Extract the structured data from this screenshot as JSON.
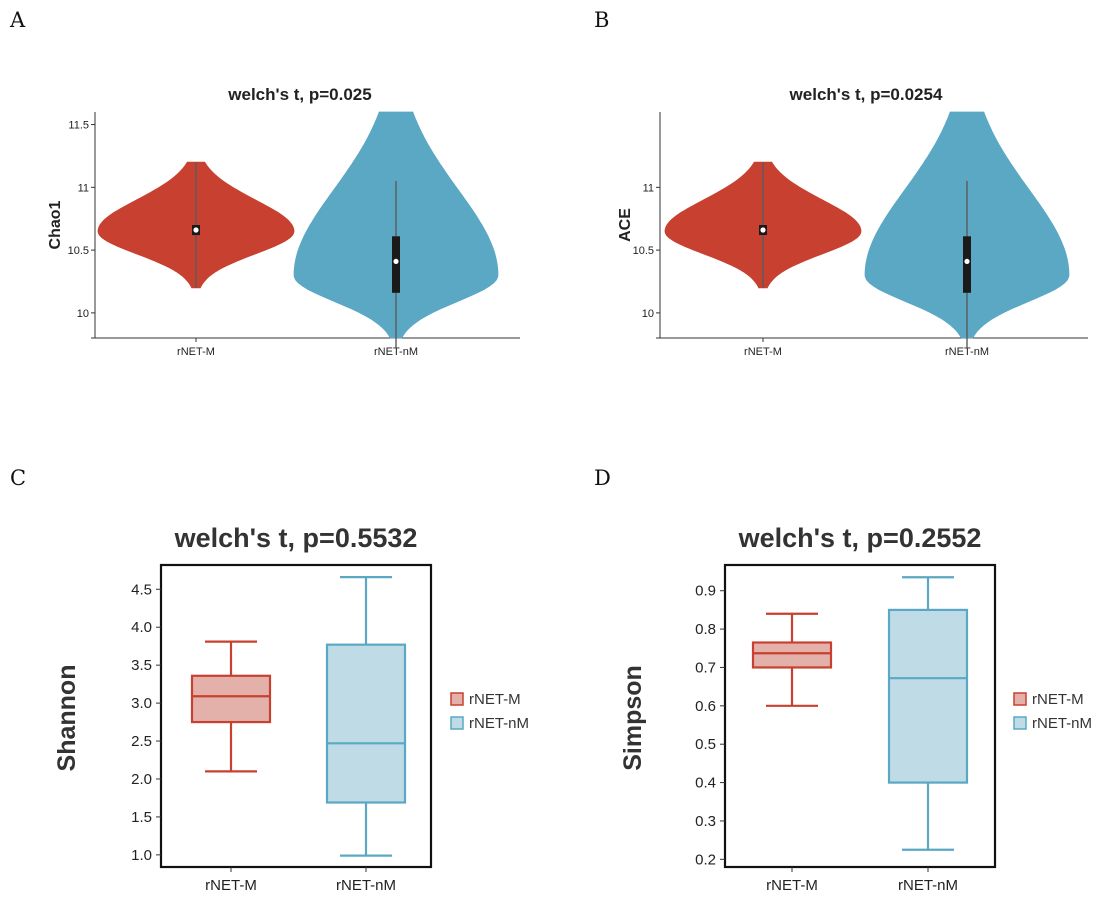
{
  "colors": {
    "red": "#C8402F",
    "blue": "#5AA8C4",
    "red_fill": "#E4B0AA",
    "blue_fill": "#BFDCE6",
    "red_line": "#C8402F",
    "blue_line": "#5AA8C4"
  },
  "chart_data": [
    {
      "panel": "A",
      "type": "violin",
      "title": "welch's t,  p=0.025",
      "ylabel": "Chao1",
      "categories": [
        "rNET-M",
        "rNET-nM"
      ],
      "yticks": [
        "10",
        "10.5",
        "11",
        "11.5"
      ],
      "ytick_values": [
        10,
        10.5,
        11,
        11.5
      ],
      "ylim": [
        9.8,
        11.6
      ],
      "series": [
        {
          "name": "rNET-M",
          "min": 10.2,
          "q1": 10.62,
          "median": 10.66,
          "q3": 10.7,
          "max": 11.2,
          "mode": 10.65
        },
        {
          "name": "rNET-nM",
          "min": 9.8,
          "q1": 10.16,
          "median": 10.41,
          "q3": 10.61,
          "max": 11.6,
          "whisker_low": 9.72,
          "whisker_high": 11.05,
          "mode": 10.3
        }
      ]
    },
    {
      "panel": "B",
      "type": "violin",
      "title": "welch's t,  p=0.0254",
      "ylabel": "ACE",
      "categories": [
        "rNET-M",
        "rNET-nM"
      ],
      "yticks": [
        "10",
        "10.5",
        "11"
      ],
      "ytick_values": [
        10,
        10.5,
        11
      ],
      "ylim": [
        9.8,
        11.6
      ],
      "series": [
        {
          "name": "rNET-M",
          "min": 10.2,
          "q1": 10.62,
          "median": 10.66,
          "q3": 10.7,
          "max": 11.2,
          "mode": 10.65
        },
        {
          "name": "rNET-nM",
          "min": 9.8,
          "q1": 10.16,
          "median": 10.41,
          "q3": 10.61,
          "max": 11.6,
          "whisker_low": 9.72,
          "whisker_high": 11.05,
          "mode": 10.3
        }
      ]
    },
    {
      "panel": "C",
      "type": "box",
      "title": "welch's t,  p=0.5532",
      "ylabel": "Shannon",
      "categories": [
        "rNET-M",
        "rNET-nM"
      ],
      "yticks": [
        "1.0",
        "1.5",
        "2.0",
        "2.5",
        "3.0",
        "3.5",
        "4.0",
        "4.5"
      ],
      "ytick_values": [
        1.0,
        1.5,
        2.0,
        2.5,
        3.0,
        3.5,
        4.0,
        4.5
      ],
      "ylim": [
        0.84,
        4.82
      ],
      "legend": [
        "rNET-M",
        "rNET-nM"
      ],
      "legend_position": "right",
      "series": [
        {
          "name": "rNET-M",
          "min": 2.1,
          "q1": 2.75,
          "median": 3.09,
          "q3": 3.36,
          "max": 3.81
        },
        {
          "name": "rNET-nM",
          "min": 0.99,
          "q1": 1.69,
          "median": 2.47,
          "q3": 3.77,
          "max": 4.66
        }
      ]
    },
    {
      "panel": "D",
      "type": "box",
      "title": "welch's t,  p=0.2552",
      "ylabel": "Simpson",
      "categories": [
        "rNET-M",
        "rNET-nM"
      ],
      "yticks": [
        "0.2",
        "0.3",
        "0.4",
        "0.5",
        "0.6",
        "0.7",
        "0.8",
        "0.9"
      ],
      "ytick_values": [
        0.2,
        0.3,
        0.4,
        0.5,
        0.6,
        0.7,
        0.8,
        0.9
      ],
      "ylim": [
        0.18,
        0.967
      ],
      "legend": [
        "rNET-M",
        "rNET-nM"
      ],
      "legend_position": "right",
      "series": [
        {
          "name": "rNET-M",
          "min": 0.6,
          "q1": 0.7,
          "median": 0.737,
          "q3": 0.765,
          "max": 0.84
        },
        {
          "name": "rNET-nM",
          "min": 0.225,
          "q1": 0.4,
          "median": 0.672,
          "q3": 0.85,
          "max": 0.935
        }
      ]
    }
  ]
}
